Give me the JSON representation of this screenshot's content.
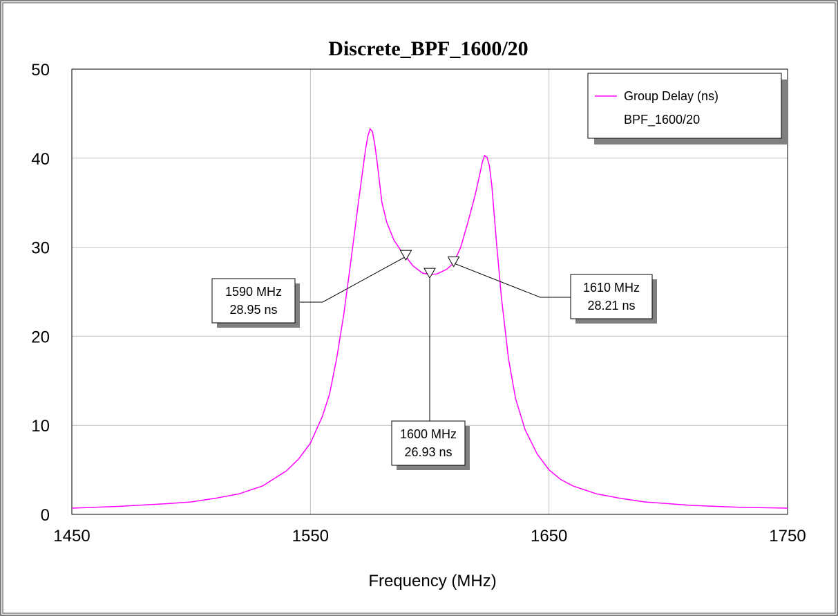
{
  "chart_data": {
    "type": "line",
    "title": "Discrete_BPF_1600/20",
    "xlabel": "Frequency (MHz)",
    "ylabel": "",
    "xlim": [
      1450,
      1750
    ],
    "ylim": [
      0,
      50
    ],
    "xticks": [
      1450,
      1550,
      1650,
      1750
    ],
    "yticks": [
      0,
      10,
      20,
      30,
      40,
      50
    ],
    "grid": true,
    "legend_position": "top-right",
    "legend": {
      "entry": "Group Delay (ns)",
      "subtitle": "BPF_1600/20"
    },
    "series": [
      {
        "name": "Group Delay (ns)",
        "color": "#ff00ff",
        "x": [
          1450,
          1470,
          1490,
          1500,
          1510,
          1520,
          1530,
          1540,
          1545,
          1550,
          1555,
          1558,
          1561,
          1564,
          1567,
          1570,
          1572,
          1573,
          1574,
          1575,
          1576,
          1577,
          1578,
          1579,
          1580,
          1582,
          1585,
          1588,
          1590,
          1593,
          1597,
          1600,
          1603,
          1607,
          1610,
          1613,
          1616,
          1619,
          1621,
          1622,
          1623,
          1624,
          1625,
          1626,
          1627,
          1628,
          1630,
          1633,
          1636,
          1640,
          1645,
          1650,
          1655,
          1660,
          1670,
          1680,
          1690,
          1700,
          1710,
          1730,
          1750
        ],
        "y": [
          0.7,
          0.9,
          1.2,
          1.4,
          1.8,
          2.3,
          3.2,
          4.9,
          6.2,
          8.0,
          11.0,
          13.5,
          17.5,
          22.5,
          28.5,
          34.8,
          38.8,
          40.8,
          42.4,
          43.3,
          43.0,
          41.5,
          39.5,
          37.2,
          35.0,
          32.8,
          30.8,
          29.6,
          28.95,
          27.9,
          27.1,
          26.93,
          27.0,
          27.5,
          28.21,
          30.0,
          32.8,
          35.8,
          38.2,
          39.5,
          40.3,
          40.1,
          39.2,
          37.0,
          33.8,
          30.5,
          24.5,
          17.5,
          13.0,
          9.5,
          6.8,
          5.0,
          3.9,
          3.2,
          2.3,
          1.8,
          1.4,
          1.2,
          1.0,
          0.8,
          0.7
        ]
      }
    ],
    "markers": [
      {
        "x": 1590,
        "y": 28.95,
        "label_freq": "1590 MHz",
        "label_value": "28.95 ns"
      },
      {
        "x": 1600,
        "y": 26.93,
        "label_freq": "1600 MHz",
        "label_value": "26.93 ns"
      },
      {
        "x": 1610,
        "y": 28.21,
        "label_freq": "1610 MHz",
        "label_value": "28.21 ns"
      }
    ]
  }
}
